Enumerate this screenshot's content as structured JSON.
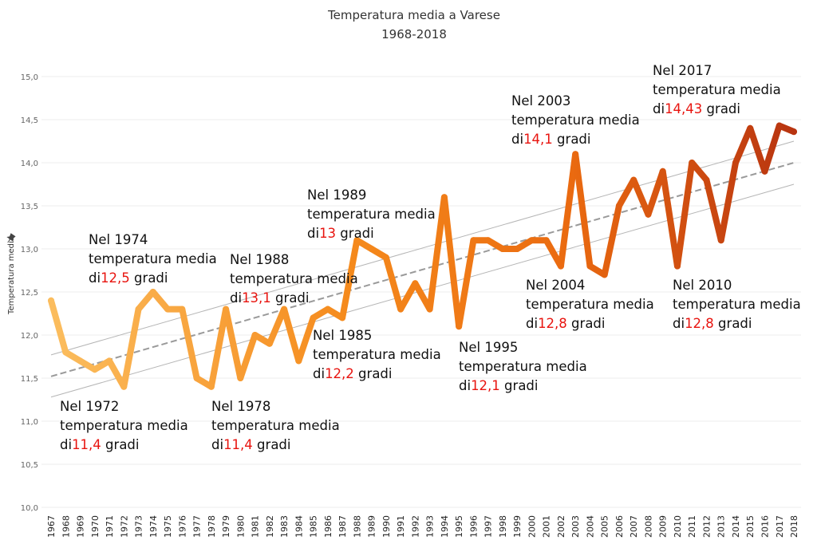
{
  "chart_data": {
    "type": "line",
    "title": "Temperatura media a Varese",
    "subtitle": "1968-2018",
    "ylabel": "Temperatura media",
    "ylim": [
      10.0,
      15.0
    ],
    "yticks": [
      "15,0",
      "14,5",
      "14,0",
      "13,5",
      "13,0",
      "12,5",
      "12,0",
      "11,5",
      "11,0",
      "10,5",
      "10,0"
    ],
    "ytick_values": [
      15.0,
      14.5,
      14.0,
      13.5,
      13.0,
      12.5,
      12.0,
      11.5,
      11.0,
      10.5,
      10.0
    ],
    "x": [
      "1967",
      "1968",
      "1969",
      "1970",
      "1971",
      "1972",
      "1973",
      "1974",
      "1975",
      "1976",
      "1977",
      "1978",
      "1979",
      "1980",
      "1981",
      "1982",
      "1983",
      "1984",
      "1985",
      "1986",
      "1987",
      "1988",
      "1989",
      "1990",
      "1991",
      "1992",
      "1993",
      "1994",
      "1995",
      "1996",
      "1997",
      "1998",
      "1999",
      "2000",
      "2001",
      "2002",
      "2003",
      "2004",
      "2005",
      "2006",
      "2007",
      "2008",
      "2009",
      "2010",
      "2011",
      "2012",
      "2013",
      "2014",
      "2015",
      "2016",
      "2017",
      "2018"
    ],
    "series": [
      {
        "values": [
          12.4,
          11.8,
          11.7,
          11.6,
          11.7,
          11.4,
          12.3,
          12.5,
          12.3,
          12.3,
          11.5,
          11.4,
          12.3,
          11.5,
          12.0,
          11.9,
          12.3,
          11.7,
          12.2,
          12.3,
          12.2,
          13.1,
          13.0,
          12.9,
          12.3,
          12.6,
          12.3,
          13.6,
          12.1,
          13.1,
          13.1,
          13.0,
          13.0,
          13.1,
          13.1,
          12.8,
          14.1,
          12.8,
          12.7,
          13.5,
          13.8,
          13.4,
          13.9,
          12.8,
          14.0,
          13.8,
          13.1,
          14.0,
          14.4,
          13.9,
          14.43,
          14.36
        ]
      }
    ],
    "trend": {
      "linear": {
        "x": [
          "1967",
          "2018"
        ],
        "y": [
          11.52,
          14.0
        ]
      },
      "upper_band": {
        "x": [
          "1967",
          "2018"
        ],
        "y": [
          11.77,
          14.25
        ]
      },
      "lower_band": {
        "x": [
          "1967",
          "2018"
        ],
        "y": [
          11.28,
          13.75
        ]
      }
    },
    "color_scale": [
      "#fbbd5e",
      "#f58a1c",
      "#ea6a10",
      "#b83410"
    ],
    "trend_color": "#9a9a9a",
    "highlight_color": "#e8140f",
    "grid": true,
    "legend": "none",
    "annotations": [
      {
        "line1": "Nel 1974",
        "line2": "temperatura media",
        "prefix": "di",
        "value": "12,5",
        "suffix": " gradi"
      },
      {
        "line1": "Nel 1972",
        "line2": "temperatura media",
        "prefix": "di",
        "value": "11,4",
        "suffix": " gradi"
      },
      {
        "line1": "Nel 1988",
        "line2": "temperatura media",
        "prefix": "di",
        "value": "13,1",
        "suffix": " gradi"
      },
      {
        "line1": "Nel 1978",
        "line2": "temperatura media",
        "prefix": "di",
        "value": "11,4",
        "suffix": " gradi"
      },
      {
        "line1": "Nel 1989",
        "line2": "temperatura media",
        "prefix": "di",
        "value": "13",
        "suffix": " gradi"
      },
      {
        "line1": "Nel 1985",
        "line2": "temperatura media",
        "prefix": "di",
        "value": "12,2",
        "suffix": " gradi"
      },
      {
        "line1": "Nel 1995",
        "line2": "temperatura media",
        "prefix": "di",
        "value": "12,1",
        "suffix": " gradi"
      },
      {
        "line1": "Nel 2003",
        "line2": "temperatura media",
        "prefix": "di",
        "value": "14,1",
        "suffix": " gradi"
      },
      {
        "line1": "Nel 2004",
        "line2": "temperatura media",
        "prefix": "di",
        "value": "12,8",
        "suffix": " gradi"
      },
      {
        "line1": "Nel 2017",
        "line2": "temperatura media",
        "prefix": "di",
        "value": "14,43",
        "suffix": " gradi"
      },
      {
        "line1": "Nel 2010",
        "line2": "temperatura media",
        "prefix": "di",
        "value": "12,8",
        "suffix": " gradi"
      }
    ]
  }
}
